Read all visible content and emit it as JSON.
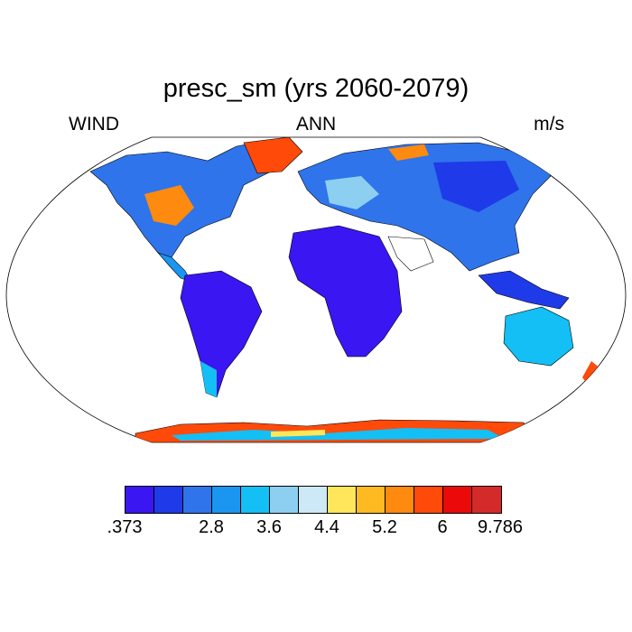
{
  "title": "presc_sm (yrs 2060-2079)",
  "left_label": "WIND",
  "center_label": "ANN",
  "right_label": "m/s",
  "colorbar": {
    "colors": [
      "#3a16f2",
      "#1f3ae8",
      "#2f74ea",
      "#1a96f0",
      "#13bff5",
      "#8ccff0",
      "#cde9f7",
      "#ffe65a",
      "#ffba22",
      "#ff8a10",
      "#ff4a0a",
      "#ea0a0a",
      "#d42a2a"
    ],
    "labels": [
      ".373",
      "2.8",
      "3.6",
      "4.4",
      "5.2",
      "6",
      "9.786"
    ]
  },
  "map": {
    "projection": "robinson",
    "land_color_low": "#3a16f2",
    "land_color_high": "#d42a2a",
    "ocean_color": "#ffffff"
  }
}
